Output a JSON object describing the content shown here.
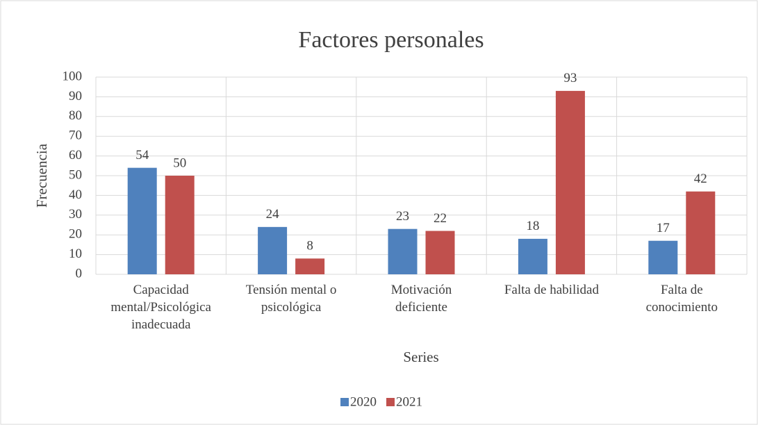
{
  "chart_data": {
    "type": "bar",
    "title": "Factores personales",
    "x_label": "Series",
    "y_label": "Frecuencia",
    "categories": [
      "Capacidad mental/Psicológica inadecuada",
      "Tensión mental o psicológica",
      "Motivación deficiente",
      "Falta de habilidad",
      "Falta de conocimiento"
    ],
    "series": [
      {
        "name": "2020",
        "color": "#4f81bd",
        "values": [
          54,
          24,
          23,
          18,
          17
        ]
      },
      {
        "name": "2021",
        "color": "#c0504d",
        "values": [
          50,
          8,
          22,
          93,
          42
        ]
      }
    ],
    "ylim": [
      0,
      100
    ],
    "yticks": [
      0,
      10,
      20,
      30,
      40,
      50,
      60,
      70,
      80,
      90,
      100
    ],
    "grid": true,
    "legend": "bottom"
  }
}
